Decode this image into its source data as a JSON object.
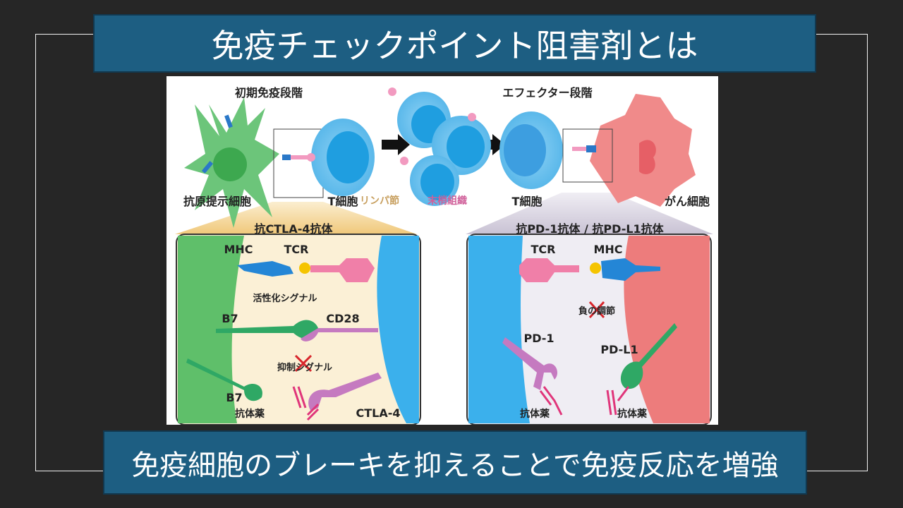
{
  "slide": {
    "title": "免疫チェックポイント阻害剤とは",
    "subtitle": "免疫細胞のブレーキを抑えることで免疫反応を増強"
  },
  "diagram": {
    "stages": {
      "early": "初期免疫段階",
      "effector": "エフェクター段階"
    },
    "cells": {
      "apc": "抗原提示細胞",
      "t_cell_left": "T細胞",
      "lymph_node": "リンパ節",
      "peripheral_tissue": "末梢組織",
      "t_cell_right": "T細胞",
      "cancer_cell": "がん細胞"
    },
    "left_panel": {
      "heading": "抗CTLA-4抗体",
      "mhc": "MHC",
      "tcr": "TCR",
      "activation_signal": "活性化シグナル",
      "b7_top": "B7",
      "cd28": "CD28",
      "inhibitory_signal": "抑制シグナル",
      "b7_bottom": "B7",
      "antibody_drug": "抗体薬",
      "ctla4": "CTLA-4"
    },
    "right_panel": {
      "heading": "抗PD-1抗体 / 抗PD-L1抗体",
      "tcr": "TCR",
      "mhc": "MHC",
      "negative_regulation": "負の調節",
      "pd1": "PD-1",
      "pdl1": "PD-L1",
      "antibody_drug_1": "抗体薬",
      "antibody_drug_2": "抗体薬"
    },
    "colors": {
      "apc": "#5cbf6a",
      "t_cell": "#41b2ea",
      "cancer": "#ec7b7b",
      "lymph_node_text": "#c8a060",
      "peripheral_text": "#d0609a",
      "block_x": "#d8252b"
    }
  }
}
